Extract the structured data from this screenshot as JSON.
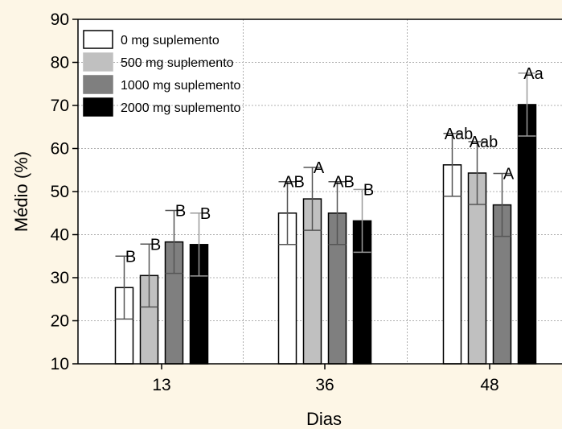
{
  "chart_data": {
    "type": "bar",
    "title": "",
    "xlabel": "Dias",
    "ylabel": "Médio (%)",
    "categories": [
      "13",
      "36",
      "48"
    ],
    "ylim": [
      10,
      90
    ],
    "yticks": [
      "10",
      "20",
      "30",
      "40",
      "50",
      "60",
      "70",
      "80",
      "90"
    ],
    "grid": true,
    "legend_position": "top-left",
    "series": [
      {
        "name": "0 mg suplemento",
        "color": "#ffffff",
        "values": [
          27.7,
          45.0,
          56.2
        ],
        "error": [
          7.3,
          7.3,
          7.3
        ],
        "labels": [
          "B",
          "AB",
          "Aab"
        ]
      },
      {
        "name": "500 mg suplemento",
        "color": "#c0c0c0",
        "values": [
          30.5,
          48.3,
          54.3
        ],
        "error": [
          7.3,
          7.3,
          7.3
        ],
        "labels": [
          "B",
          "A",
          "Aab"
        ]
      },
      {
        "name": "1000 mg suplemento",
        "color": "#7f7f7f",
        "values": [
          38.3,
          45.0,
          46.9
        ],
        "error": [
          7.3,
          7.3,
          7.3
        ],
        "labels": [
          "B",
          "AB",
          "A"
        ]
      },
      {
        "name": "2000 mg suplemento",
        "color": "#000000",
        "values": [
          37.7,
          43.2,
          70.2
        ],
        "error": [
          7.3,
          7.3,
          7.3
        ],
        "labels": [
          "B",
          "B",
          "Aa"
        ]
      }
    ]
  }
}
